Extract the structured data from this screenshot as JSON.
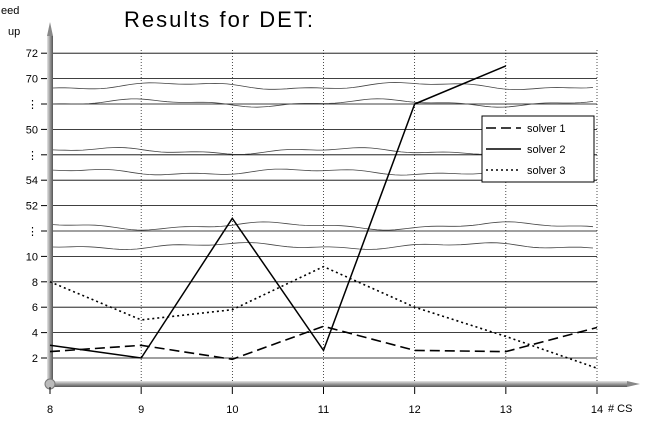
{
  "chart_data": {
    "type": "line",
    "title": "Results for DET:",
    "ylabel_line1": "eed",
    "ylabel_line2": "up",
    "xlabel": "# CS",
    "x": [
      8,
      9,
      10,
      11,
      12,
      13,
      14
    ],
    "xlim": [
      8,
      14
    ],
    "ytick_labels": [
      "2",
      "4",
      "6",
      "8",
      "10",
      "⋮",
      "52",
      "54",
      "⋮",
      "50",
      "⋮",
      "70",
      "72"
    ],
    "grid": true,
    "legend_position": "right",
    "series": [
      {
        "name": "solver 1",
        "style": "dashed",
        "values": [
          2.5,
          3.0,
          1.9,
          4.5,
          2.6,
          2.5,
          4.4
        ]
      },
      {
        "name": "solver 2",
        "style": "solid",
        "values": [
          3.0,
          2.0,
          13.0,
          2.6,
          22.0,
          25.0,
          null
        ]
      },
      {
        "name": "solver 3",
        "style": "dotted",
        "values": [
          8.0,
          5.0,
          5.8,
          9.2,
          6.0,
          3.7,
          1.2
        ]
      }
    ]
  }
}
